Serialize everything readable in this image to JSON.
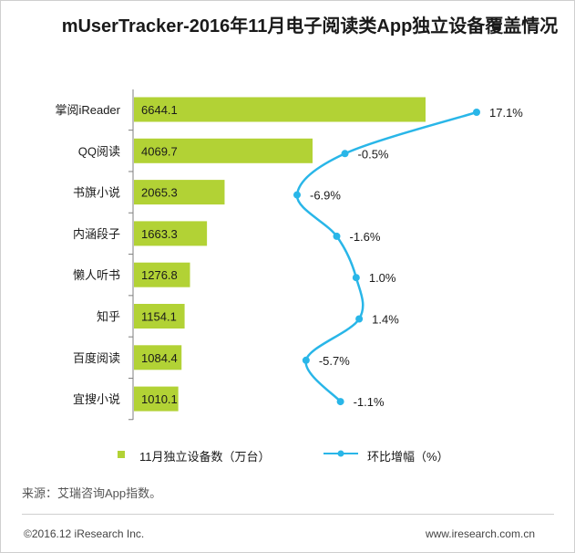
{
  "title": "mUserTracker-2016年11月电子阅读类App独立设备覆盖情况",
  "legend": {
    "bar_label": "11月独立设备数（万台）",
    "line_label": "环比增幅（%）"
  },
  "source": "来源：艾瑞咨询App指数。",
  "copyright": "©2016.12 iResearch Inc.",
  "website": "www.iresearch.com.cn",
  "colors": {
    "bar": "#b2d235",
    "line": "#29b6e8",
    "axis": "#7f7f7f"
  },
  "chart_data": {
    "type": "bar",
    "orientation": "horizontal",
    "categories": [
      "掌阅iReader",
      "QQ阅读",
      "书旗小说",
      "内涵段子",
      "懒人听书",
      "知乎",
      "百度阅读",
      "宜搜小说"
    ],
    "series": [
      {
        "name": "11月独立设备数（万台）",
        "type": "bar",
        "values": [
          6644.1,
          4069.7,
          2065.3,
          1663.3,
          1276.8,
          1154.1,
          1084.4,
          1010.1
        ],
        "labels": [
          "6644.1",
          "4069.7",
          "2065.3",
          "1663.3",
          "1276.8",
          "1154.1",
          "1084.4",
          "1010.1"
        ]
      },
      {
        "name": "环比增幅（%）",
        "type": "line",
        "values": [
          17.1,
          -0.5,
          -6.9,
          -1.6,
          1.0,
          1.4,
          -5.7,
          -1.1
        ],
        "labels": [
          "17.1%",
          "-0.5%",
          "-6.9%",
          "-1.6%",
          "1.0%",
          "1.4%",
          "-5.7%",
          "-1.1%"
        ]
      }
    ],
    "xlim_bar": [
      0,
      6644.1
    ],
    "xlim_line": [
      -6.9,
      17.1
    ],
    "grid": false,
    "legend_position": "bottom"
  }
}
